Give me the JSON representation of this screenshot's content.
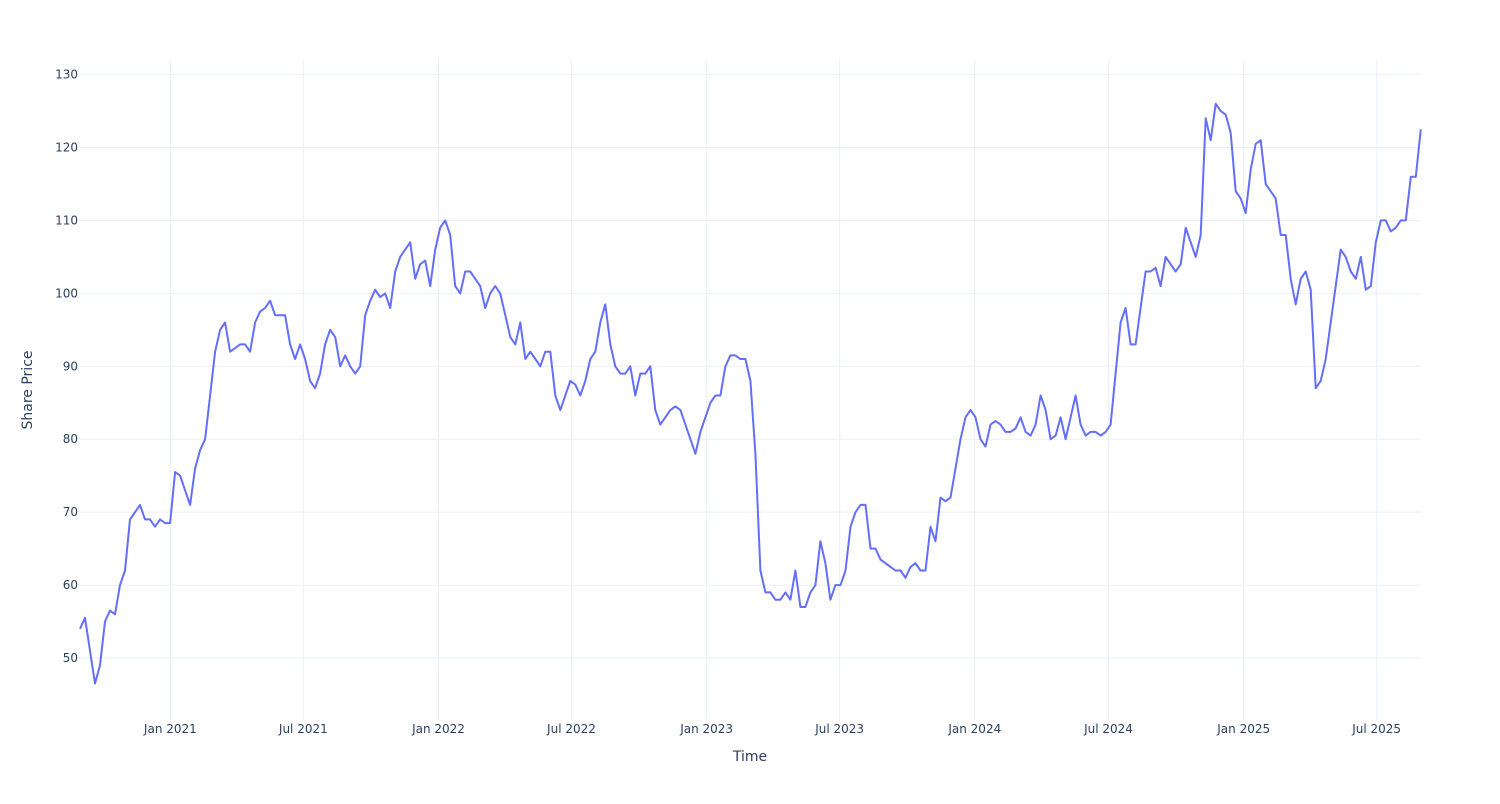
{
  "chart_data": {
    "type": "line",
    "title": "",
    "xlabel": "Time",
    "ylabel": "Share Price",
    "grid": true,
    "legend": "none",
    "x_start": "2020-08-31",
    "step_days": 6.81,
    "xlim": [
      "2020-08-31",
      "2025-08-29"
    ],
    "ylim": [
      41.5,
      132
    ],
    "x_ticks": [
      {
        "date": "2021-01-01",
        "label": "Jan 2021"
      },
      {
        "date": "2021-07-01",
        "label": "Jul 2021"
      },
      {
        "date": "2022-01-01",
        "label": "Jan 2022"
      },
      {
        "date": "2022-07-01",
        "label": "Jul 2022"
      },
      {
        "date": "2023-01-01",
        "label": "Jan 2023"
      },
      {
        "date": "2023-07-01",
        "label": "Jul 2023"
      },
      {
        "date": "2024-01-01",
        "label": "Jan 2024"
      },
      {
        "date": "2024-07-01",
        "label": "Jul 2024"
      },
      {
        "date": "2025-01-01",
        "label": "Jan 2025"
      },
      {
        "date": "2025-07-01",
        "label": "Jul 2025"
      }
    ],
    "y_ticks": [
      50,
      60,
      70,
      80,
      90,
      100,
      110,
      120,
      130
    ],
    "series": [
      {
        "name": "Share Price",
        "color": "#636efa",
        "values": [
          54,
          55.5,
          51,
          46.5,
          49,
          55,
          56.5,
          56,
          60,
          62,
          69,
          70,
          71,
          69,
          69,
          68,
          69,
          68.5,
          68.5,
          75.5,
          75,
          73,
          71,
          76,
          78.5,
          80,
          86,
          92,
          95,
          96,
          92,
          92.5,
          93,
          93,
          92,
          96,
          97.5,
          98,
          99,
          97,
          97,
          97,
          93,
          91,
          93,
          91,
          88,
          87,
          89,
          93,
          95,
          94,
          90,
          91.5,
          90,
          89,
          90,
          97,
          99,
          100.5,
          99.5,
          100,
          98,
          103,
          105,
          106,
          107,
          102,
          104,
          104.5,
          101,
          106,
          109,
          110,
          108,
          101,
          100,
          103,
          103,
          102,
          101,
          98,
          100,
          101,
          100,
          97,
          94,
          93,
          96,
          91,
          92,
          91,
          90,
          92,
          92,
          86,
          84,
          86,
          88,
          87.5,
          86,
          88,
          91,
          92,
          96,
          98.5,
          93,
          90,
          89,
          89,
          90,
          86,
          89,
          89,
          90,
          84,
          82,
          83,
          84,
          84.5,
          84,
          82,
          80,
          78,
          81,
          83,
          85,
          86,
          86,
          90,
          91.5,
          91.5,
          91,
          91,
          88,
          78,
          62,
          59,
          59,
          58,
          58,
          59,
          58,
          62,
          57,
          57,
          59,
          60,
          66,
          63,
          58,
          60,
          60,
          62,
          68,
          70,
          71,
          71,
          65,
          65,
          63.5,
          63,
          62.5,
          62,
          62,
          61,
          62.5,
          63,
          62,
          62,
          68,
          66,
          72,
          71.5,
          72,
          76,
          80,
          83,
          84,
          83,
          80,
          79,
          82,
          82.5,
          82,
          81,
          81,
          81.5,
          83,
          81,
          80.5,
          82,
          86,
          84,
          80,
          80.5,
          83,
          80,
          83,
          86,
          82,
          80.5,
          81,
          81,
          80.5,
          81,
          82,
          89,
          96,
          98,
          93,
          93,
          98,
          103,
          103,
          103.5,
          101,
          105,
          104,
          103,
          104,
          109,
          107,
          105,
          108,
          124,
          121,
          126,
          125,
          124.5,
          122,
          114,
          113,
          111,
          117,
          120.5,
          121,
          115,
          114,
          113,
          108,
          108,
          102,
          98.5,
          102,
          103,
          100.5,
          87,
          88,
          91,
          96,
          101,
          106,
          105,
          103,
          102,
          105,
          100.5,
          101,
          107,
          110,
          110,
          108.5,
          109,
          110,
          110,
          116,
          116,
          122.5
        ]
      }
    ]
  }
}
